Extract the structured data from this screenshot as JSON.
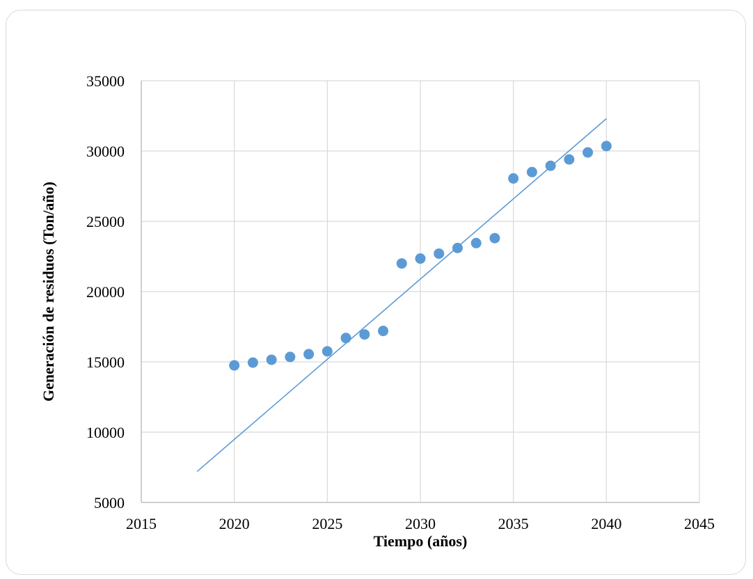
{
  "chart_data": {
    "type": "scatter",
    "title": "",
    "xlabel": "Tiempo (años)",
    "ylabel": "Generación de residuos (Ton/año)",
    "xlim": [
      2015,
      2045
    ],
    "ylim": [
      5000,
      35000
    ],
    "x_ticks": [
      2015,
      2020,
      2025,
      2030,
      2035,
      2040,
      2045
    ],
    "y_ticks": [
      5000,
      10000,
      15000,
      20000,
      25000,
      30000,
      35000
    ],
    "x_tick_labels": [
      "2015",
      "2020",
      "2025",
      "2030",
      "2035",
      "2040",
      "2045"
    ],
    "y_tick_labels": [
      "5000",
      "10000",
      "15000",
      "20000",
      "25000",
      "30000",
      "35000"
    ],
    "grid": true,
    "legend": "none",
    "colors": {
      "marker": "#5b9bd5",
      "trendline": "#5b9bd5",
      "grid": "#d9d9d9",
      "axis": "#bfbfbf"
    },
    "series": [
      {
        "marker": "circle",
        "x": [
          2020,
          2021,
          2022,
          2023,
          2024,
          2025,
          2026,
          2027,
          2028,
          2029,
          2030,
          2031,
          2032,
          2033,
          2034,
          2035,
          2036,
          2037,
          2038,
          2039,
          2040
        ],
        "y": [
          14750,
          14950,
          15150,
          15350,
          15550,
          15750,
          16700,
          16950,
          17200,
          22000,
          22350,
          22700,
          23100,
          23450,
          23800,
          28050,
          28500,
          28950,
          29400,
          29900,
          30350
        ]
      }
    ],
    "trendline": {
      "type": "linear",
      "x": [
        2018,
        2040
      ],
      "y": [
        7200,
        32300
      ]
    }
  }
}
